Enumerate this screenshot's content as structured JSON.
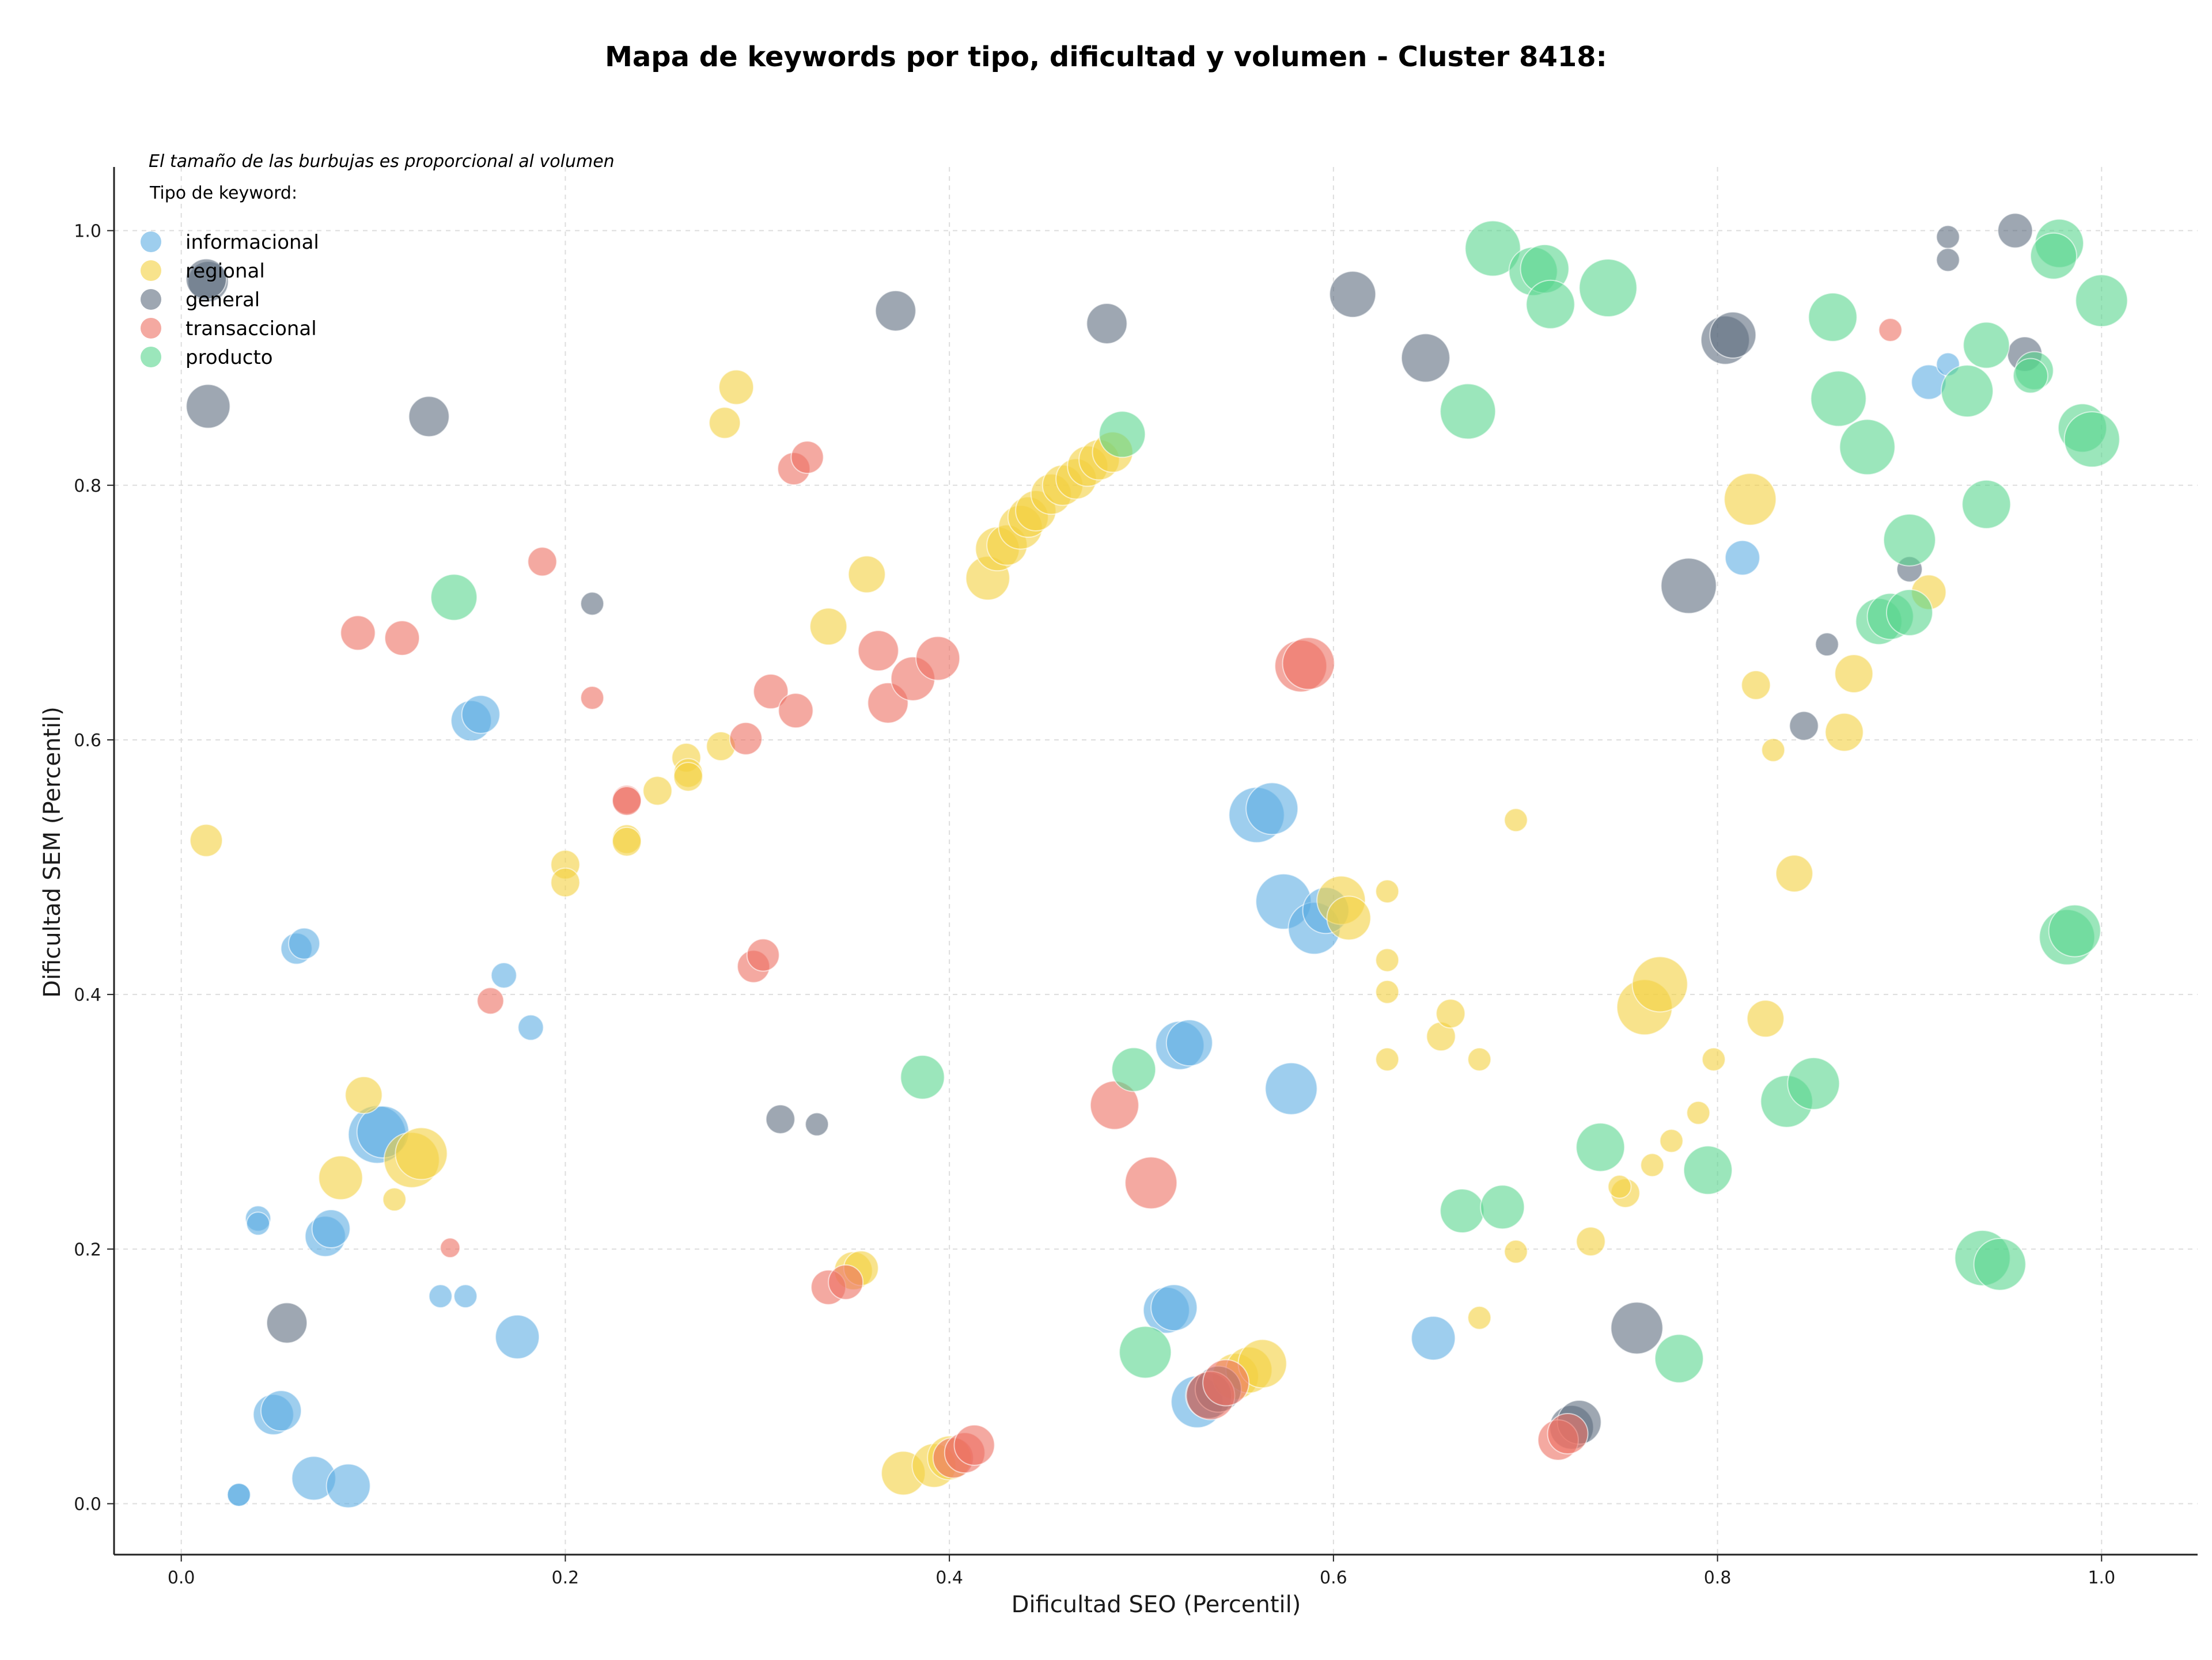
{
  "chart_data": {
    "type": "scatter",
    "title": "Mapa de keywords por tipo, dificultad y volumen - Cluster 8418:",
    "xlabel": "Dificultad SEO (Percentil)",
    "ylabel": "Dificultad SEM (Percentil)",
    "xlim": [
      -0.035,
      1.05
    ],
    "ylim": [
      -0.04,
      1.05
    ],
    "xticks": [
      "0.0",
      "0.2",
      "0.4",
      "0.6",
      "0.8",
      "1.0"
    ],
    "yticks": [
      "0.0",
      "0.2",
      "0.4",
      "0.6",
      "0.8",
      "1.0"
    ],
    "grid": true,
    "note": "El tamaño de las burbujas es proporcional al volumen",
    "legend_title": "Tipo de keyword:",
    "legend_placement": "top-left",
    "series": [
      {
        "name": "informacional",
        "color": "#5DADE2",
        "points": [
          [
            0.03,
            0.007,
            20
          ],
          [
            0.03,
            0.007,
            20
          ],
          [
            0.048,
            0.07,
            35
          ],
          [
            0.052,
            0.073,
            35
          ],
          [
            0.069,
            0.02,
            38
          ],
          [
            0.087,
            0.014,
            38
          ],
          [
            0.04,
            0.224,
            22
          ],
          [
            0.04,
            0.22,
            20
          ],
          [
            0.075,
            0.21,
            35
          ],
          [
            0.078,
            0.216,
            33
          ],
          [
            0.135,
            0.163,
            20
          ],
          [
            0.148,
            0.163,
            20
          ],
          [
            0.175,
            0.131,
            38
          ],
          [
            0.06,
            0.436,
            27
          ],
          [
            0.064,
            0.44,
            27
          ],
          [
            0.102,
            0.29,
            50
          ],
          [
            0.105,
            0.292,
            45
          ],
          [
            0.151,
            0.615,
            35
          ],
          [
            0.156,
            0.62,
            33
          ],
          [
            0.168,
            0.415,
            22
          ],
          [
            0.182,
            0.374,
            22
          ],
          [
            0.513,
            0.152,
            40
          ],
          [
            0.517,
            0.154,
            40
          ],
          [
            0.52,
            0.36,
            42
          ],
          [
            0.525,
            0.362,
            40
          ],
          [
            0.529,
            0.08,
            45
          ],
          [
            0.56,
            0.541,
            48
          ],
          [
            0.568,
            0.546,
            45
          ],
          [
            0.574,
            0.473,
            48
          ],
          [
            0.578,
            0.326,
            45
          ],
          [
            0.59,
            0.452,
            45
          ],
          [
            0.596,
            0.466,
            40
          ],
          [
            0.652,
            0.13,
            38
          ],
          [
            0.813,
            0.743,
            30
          ],
          [
            0.91,
            0.881,
            30
          ],
          [
            0.92,
            0.895,
            20
          ]
        ]
      },
      {
        "name": "regional",
        "color": "#F4D03F",
        "points": [
          [
            0.013,
            0.521,
            28
          ],
          [
            0.083,
            0.256,
            38
          ],
          [
            0.095,
            0.321,
            32
          ],
          [
            0.111,
            0.239,
            20
          ],
          [
            0.12,
            0.27,
            48
          ],
          [
            0.125,
            0.275,
            45
          ],
          [
            0.2,
            0.502,
            25
          ],
          [
            0.2,
            0.488,
            25
          ],
          [
            0.232,
            0.522,
            25
          ],
          [
            0.232,
            0.52,
            25
          ],
          [
            0.248,
            0.56,
            25
          ],
          [
            0.263,
            0.586,
            25
          ],
          [
            0.264,
            0.574,
            25
          ],
          [
            0.264,
            0.571,
            25
          ],
          [
            0.281,
            0.595,
            25
          ],
          [
            0.283,
            0.849,
            27
          ],
          [
            0.289,
            0.877,
            30
          ],
          [
            0.337,
            0.689,
            32
          ],
          [
            0.357,
            0.73,
            32
          ],
          [
            0.35,
            0.183,
            33
          ],
          [
            0.354,
            0.185,
            30
          ],
          [
            0.376,
            0.024,
            38
          ],
          [
            0.392,
            0.03,
            38
          ],
          [
            0.4,
            0.036,
            38
          ],
          [
            0.42,
            0.727,
            38
          ],
          [
            0.425,
            0.75,
            38
          ],
          [
            0.43,
            0.753,
            35
          ],
          [
            0.437,
            0.767,
            38
          ],
          [
            0.441,
            0.775,
            35
          ],
          [
            0.445,
            0.78,
            35
          ],
          [
            0.453,
            0.793,
            35
          ],
          [
            0.459,
            0.8,
            35
          ],
          [
            0.466,
            0.805,
            35
          ],
          [
            0.472,
            0.815,
            35
          ],
          [
            0.478,
            0.82,
            35
          ],
          [
            0.485,
            0.826,
            35
          ],
          [
            0.549,
            0.1,
            40
          ],
          [
            0.556,
            0.105,
            40
          ],
          [
            0.563,
            0.11,
            42
          ],
          [
            0.604,
            0.474,
            42
          ],
          [
            0.608,
            0.46,
            38
          ],
          [
            0.628,
            0.481,
            20
          ],
          [
            0.628,
            0.427,
            20
          ],
          [
            0.628,
            0.402,
            20
          ],
          [
            0.628,
            0.349,
            20
          ],
          [
            0.656,
            0.367,
            25
          ],
          [
            0.661,
            0.385,
            25
          ],
          [
            0.676,
            0.146,
            20
          ],
          [
            0.676,
            0.349,
            20
          ],
          [
            0.695,
            0.537,
            20
          ],
          [
            0.695,
            0.198,
            20
          ],
          [
            0.734,
            0.206,
            25
          ],
          [
            0.752,
            0.244,
            25
          ],
          [
            0.749,
            0.249,
            20
          ],
          [
            0.762,
            0.39,
            48
          ],
          [
            0.77,
            0.408,
            48
          ],
          [
            0.766,
            0.266,
            20
          ],
          [
            0.776,
            0.285,
            20
          ],
          [
            0.79,
            0.307,
            20
          ],
          [
            0.798,
            0.349,
            20
          ],
          [
            0.817,
            0.789,
            45
          ],
          [
            0.82,
            0.643,
            25
          ],
          [
            0.825,
            0.381,
            32
          ],
          [
            0.829,
            0.592,
            20
          ],
          [
            0.84,
            0.495,
            32
          ],
          [
            0.866,
            0.606,
            33
          ],
          [
            0.871,
            0.652,
            33
          ],
          [
            0.91,
            0.716,
            30
          ]
        ]
      },
      {
        "name": "general",
        "color": "#5D6D7E",
        "points": [
          [
            0.014,
            0.862,
            38
          ],
          [
            0.014,
            0.96,
            35
          ],
          [
            0.013,
            0.962,
            35
          ],
          [
            0.055,
            0.142,
            35
          ],
          [
            0.129,
            0.854,
            35
          ],
          [
            0.214,
            0.707,
            20
          ],
          [
            0.312,
            0.302,
            25
          ],
          [
            0.331,
            0.298,
            20
          ],
          [
            0.372,
            0.937,
            35
          ],
          [
            0.482,
            0.927,
            35
          ],
          [
            0.535,
            0.085,
            40
          ],
          [
            0.54,
            0.09,
            40
          ],
          [
            0.61,
            0.95,
            40
          ],
          [
            0.648,
            0.9,
            42
          ],
          [
            0.724,
            0.06,
            38
          ],
          [
            0.728,
            0.064,
            38
          ],
          [
            0.758,
            0.138,
            45
          ],
          [
            0.785,
            0.721,
            48
          ],
          [
            0.804,
            0.914,
            42
          ],
          [
            0.808,
            0.918,
            40
          ],
          [
            0.845,
            0.611,
            25
          ],
          [
            0.857,
            0.675,
            20
          ],
          [
            0.9,
            0.734,
            22
          ],
          [
            0.92,
            0.995,
            20
          ],
          [
            0.92,
            0.977,
            20
          ],
          [
            0.955,
            1.0,
            30
          ],
          [
            0.96,
            0.903,
            30
          ]
        ]
      },
      {
        "name": "transaccional",
        "color": "#EC7063",
        "points": [
          [
            0.092,
            0.684,
            30
          ],
          [
            0.115,
            0.68,
            30
          ],
          [
            0.14,
            0.201,
            17
          ],
          [
            0.161,
            0.395,
            23
          ],
          [
            0.188,
            0.74,
            25
          ],
          [
            0.214,
            0.633,
            20
          ],
          [
            0.232,
            0.553,
            25
          ],
          [
            0.232,
            0.552,
            25
          ],
          [
            0.294,
            0.601,
            28
          ],
          [
            0.298,
            0.422,
            28
          ],
          [
            0.303,
            0.431,
            28
          ],
          [
            0.307,
            0.638,
            30
          ],
          [
            0.319,
            0.813,
            28
          ],
          [
            0.32,
            0.623,
            30
          ],
          [
            0.326,
            0.822,
            28
          ],
          [
            0.337,
            0.17,
            30
          ],
          [
            0.346,
            0.174,
            30
          ],
          [
            0.363,
            0.67,
            35
          ],
          [
            0.368,
            0.629,
            35
          ],
          [
            0.381,
            0.648,
            38
          ],
          [
            0.394,
            0.664,
            38
          ],
          [
            0.402,
            0.036,
            35
          ],
          [
            0.408,
            0.04,
            35
          ],
          [
            0.413,
            0.046,
            35
          ],
          [
            0.486,
            0.313,
            42
          ],
          [
            0.505,
            0.252,
            45
          ],
          [
            0.536,
            0.085,
            42
          ],
          [
            0.544,
            0.095,
            40
          ],
          [
            0.583,
            0.658,
            45
          ],
          [
            0.587,
            0.66,
            45
          ],
          [
            0.717,
            0.05,
            35
          ],
          [
            0.722,
            0.055,
            35
          ],
          [
            0.89,
            0.922,
            20
          ]
        ]
      },
      {
        "name": "producto",
        "color": "#58D68D",
        "points": [
          [
            0.142,
            0.712,
            40
          ],
          [
            0.386,
            0.335,
            38
          ],
          [
            0.49,
            0.84,
            40
          ],
          [
            0.496,
            0.341,
            38
          ],
          [
            0.502,
            0.119,
            45
          ],
          [
            0.67,
            0.858,
            48
          ],
          [
            0.667,
            0.23,
            38
          ],
          [
            0.688,
            0.233,
            38
          ],
          [
            0.683,
            0.986,
            48
          ],
          [
            0.704,
            0.968,
            42
          ],
          [
            0.71,
            0.97,
            42
          ],
          [
            0.713,
            0.942,
            42
          ],
          [
            0.743,
            0.955,
            50
          ],
          [
            0.739,
            0.28,
            42
          ],
          [
            0.78,
            0.114,
            42
          ],
          [
            0.795,
            0.262,
            42
          ],
          [
            0.836,
            0.316,
            45
          ],
          [
            0.85,
            0.33,
            45
          ],
          [
            0.86,
            0.932,
            42
          ],
          [
            0.863,
            0.868,
            48
          ],
          [
            0.878,
            0.83,
            48
          ],
          [
            0.884,
            0.693,
            40
          ],
          [
            0.89,
            0.697,
            40
          ],
          [
            0.9,
            0.7,
            40
          ],
          [
            0.9,
            0.757,
            45
          ],
          [
            0.94,
            0.785,
            42
          ],
          [
            0.93,
            0.874,
            45
          ],
          [
            0.94,
            0.91,
            40
          ],
          [
            0.965,
            0.89,
            33
          ],
          [
            0.963,
            0.886,
            30
          ],
          [
            0.978,
            0.99,
            42
          ],
          [
            0.975,
            0.98,
            40
          ],
          [
            0.938,
            0.193,
            48
          ],
          [
            0.947,
            0.188,
            45
          ],
          [
            0.982,
            0.445,
            48
          ],
          [
            0.986,
            0.45,
            45
          ],
          [
            0.99,
            0.845,
            42
          ],
          [
            0.995,
            0.836,
            48
          ],
          [
            1.0,
            0.945,
            45
          ]
        ]
      }
    ]
  }
}
